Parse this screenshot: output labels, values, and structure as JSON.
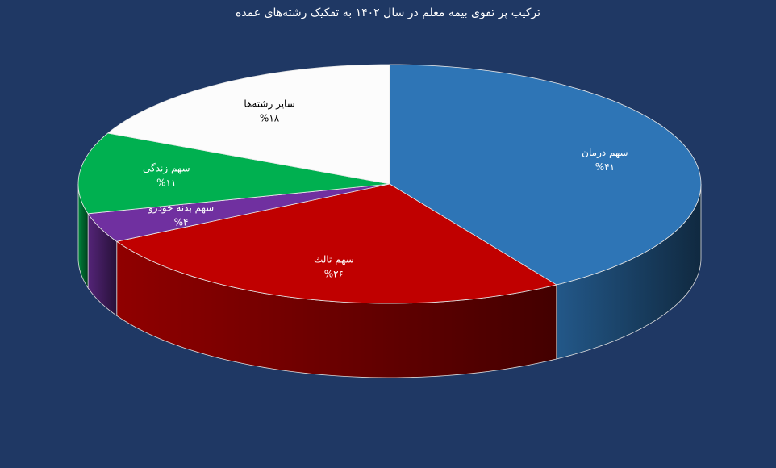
{
  "chart_data": {
    "type": "pie3d",
    "title": "ترکیب پر تفوی بیمه معلم در سال ۱۴۰۲ به تفکیک رشته‌های عمده",
    "categories": [
      "سهم درمان",
      "سهم ثالث",
      "سهم بدنه خودرو",
      "سهم زندگی",
      "سایر رشته‌ها"
    ],
    "values": [
      41,
      26,
      4,
      11,
      18
    ],
    "value_labels": [
      "%۴۱",
      "%۲۶",
      "%۴",
      "%۱۱",
      "%۱۸"
    ],
    "colors": [
      "#2e75b6",
      "#c00000",
      "#7030a0",
      "#00b050",
      "#fcfcfc"
    ]
  }
}
